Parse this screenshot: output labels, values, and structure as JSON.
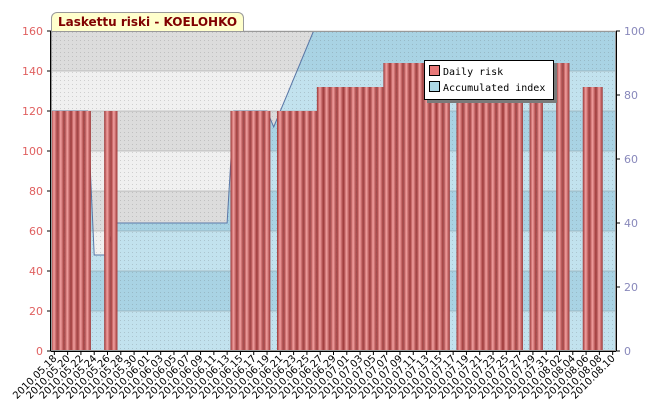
{
  "chart_data": {
    "type": "bar",
    "title": "Laskettu riski - KOELOHKO",
    "dates": [
      "2010.05.18",
      "2010.05.19",
      "2010.05.20",
      "2010.05.21",
      "2010.05.22",
      "2010.05.23",
      "2010.05.24",
      "2010.05.25",
      "2010.05.26",
      "2010.05.27",
      "2010.05.28",
      "2010.05.29",
      "2010.05.30",
      "2010.05.31",
      "2010.06.01",
      "2010.06.02",
      "2010.06.03",
      "2010.06.04",
      "2010.06.05",
      "2010.06.06",
      "2010.06.07",
      "2010.06.08",
      "2010.06.09",
      "2010.06.10",
      "2010.06.11",
      "2010.06.12",
      "2010.06.13",
      "2010.06.14",
      "2010.06.15",
      "2010.06.16",
      "2010.06.17",
      "2010.06.18",
      "2010.06.19",
      "2010.06.20",
      "2010.06.21",
      "2010.06.22",
      "2010.06.23",
      "2010.06.24",
      "2010.06.25",
      "2010.06.26",
      "2010.06.27",
      "2010.06.28",
      "2010.06.29",
      "2010.06.30",
      "2010.07.01",
      "2010.07.02",
      "2010.07.03",
      "2010.07.04",
      "2010.07.05",
      "2010.07.06",
      "2010.07.07",
      "2010.07.08",
      "2010.07.09",
      "2010.07.10",
      "2010.07.11",
      "2010.07.12",
      "2010.07.13",
      "2010.07.14",
      "2010.07.15",
      "2010.07.16",
      "2010.07.17",
      "2010.07.18",
      "2010.07.19",
      "2010.07.20",
      "2010.07.21",
      "2010.07.22",
      "2010.07.23",
      "2010.07.24",
      "2010.07.25",
      "2010.07.26",
      "2010.07.27",
      "2010.07.28",
      "2010.07.29",
      "2010.07.30",
      "2010.07.31",
      "2010.08.01",
      "2010.08.02",
      "2010.08.03",
      "2010.08.04",
      "2010.08.05",
      "2010.08.06",
      "2010.08.07",
      "2010.08.08",
      "2010.08.09",
      "2010.08.10"
    ],
    "tick_labels": [
      "2010.05.18",
      "2010.05.20",
      "2010.05.22",
      "2010.05.24",
      "2010.05.26",
      "2010.05.28",
      "2010.05.30",
      "2010.06.01",
      "2010.06.03",
      "2010.06.05",
      "2010.06.07",
      "2010.06.09",
      "2010.06.11",
      "2010.06.13",
      "2010.06.15",
      "2010.06.17",
      "2010.06.19",
      "2010.06.21",
      "2010.06.23",
      "2010.06.25",
      "2010.06.27",
      "2010.06.29",
      "2010.07.01",
      "2010.07.03",
      "2010.07.05",
      "2010.07.07",
      "2010.07.09",
      "2010.07.11",
      "2010.07.13",
      "2010.07.15",
      "2010.07.17",
      "2010.07.19",
      "2010.07.21",
      "2010.07.23",
      "2010.07.25",
      "2010.07.27",
      "2010.07.29",
      "2010.07.31",
      "2010.08.02",
      "2010.08.04",
      "2010.08.06",
      "2010.08.08",
      "2010.08.10"
    ],
    "series": [
      {
        "name": "Daily risk",
        "axis": "left",
        "color": "#e87878",
        "values": [
          120,
          120,
          120,
          120,
          120,
          120,
          0,
          0,
          120,
          120,
          0,
          0,
          0,
          0,
          0,
          0,
          0,
          0,
          0,
          0,
          0,
          0,
          0,
          0,
          0,
          0,
          0,
          120,
          120,
          120,
          120,
          120,
          120,
          0,
          120,
          120,
          120,
          120,
          120,
          120,
          132,
          132,
          132,
          132,
          132,
          132,
          132,
          132,
          132,
          132,
          144,
          144,
          144,
          144,
          144,
          144,
          144,
          144,
          144,
          144,
          0,
          132,
          132,
          132,
          132,
          132,
          132,
          132,
          132,
          132,
          132,
          0,
          132,
          132,
          0,
          0,
          144,
          144,
          0,
          0,
          132,
          132,
          132,
          0,
          0
        ]
      },
      {
        "name": "Accumulated index",
        "axis": "right",
        "color": "#add8e6",
        "values": [
          75,
          75,
          75,
          75,
          75,
          75,
          30,
          30,
          30,
          40,
          40,
          40,
          40,
          40,
          40,
          40,
          40,
          40,
          40,
          40,
          40,
          40,
          40,
          40,
          40,
          40,
          40,
          75,
          75,
          75,
          75,
          75,
          75,
          70,
          75,
          80,
          85,
          90,
          95,
          100,
          100,
          100,
          100,
          100,
          100,
          100,
          100,
          100,
          100,
          100,
          100,
          100,
          100,
          100,
          100,
          100,
          100,
          100,
          100,
          100,
          100,
          100,
          100,
          100,
          100,
          100,
          100,
          100,
          100,
          100,
          100,
          100,
          100,
          100,
          100,
          100,
          100,
          100,
          100,
          100,
          100,
          100,
          100,
          100,
          100
        ]
      }
    ],
    "y_left": {
      "min": 0,
      "max": 160,
      "ticks": [
        0,
        20,
        40,
        60,
        80,
        100,
        120,
        140,
        160
      ]
    },
    "y_right": {
      "min": 0,
      "max": 100,
      "ticks": [
        0,
        20,
        40,
        60,
        80,
        100
      ]
    },
    "grid": true,
    "legend_position": "top-right",
    "xlabel": "",
    "ylabel": ""
  },
  "colors": {
    "left_axis": "#e06060",
    "right_axis": "#8888bb",
    "band_dark": "#dcdcdc",
    "band_light": "#f0f0f0",
    "area_dark": "#a9d3e4",
    "area_light": "#c2e2ee",
    "bar_dark": "#9a3434"
  }
}
